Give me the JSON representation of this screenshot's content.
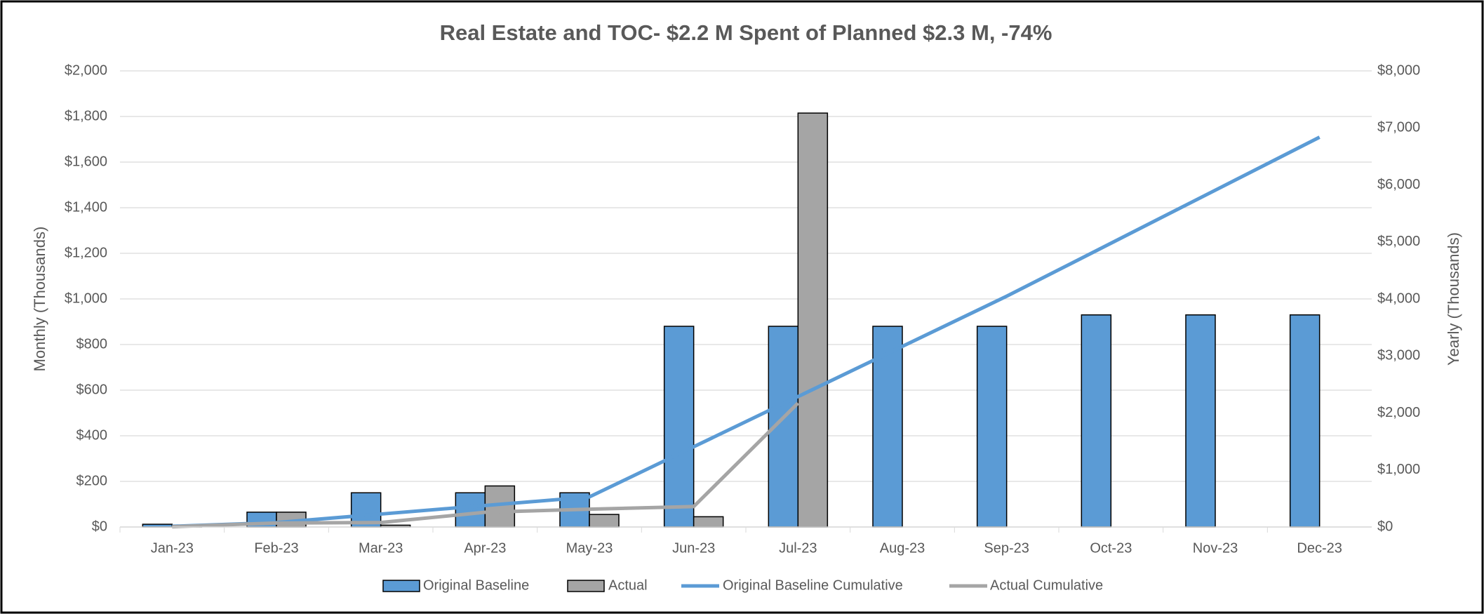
{
  "chart_data": {
    "type": "combo",
    "title": "Real Estate and TOC- $2.2 M Spent of Planned $2.3 M, -74%",
    "y_label": "Monthly (Thousands)",
    "y2_label": "Yearly (Thousands)",
    "categories": [
      "Jan-23",
      "Feb-23",
      "Mar-23",
      "Apr-23",
      "May-23",
      "Jun-23",
      "Jul-23",
      "Aug-23",
      "Sep-23",
      "Oct-23",
      "Nov-23",
      "Dec-23"
    ],
    "series": [
      {
        "name": "Original Baseline",
        "type": "bar",
        "color": "#5b9bd5",
        "values": [
          12,
          65,
          150,
          150,
          150,
          880,
          880,
          880,
          880,
          930,
          930,
          930
        ]
      },
      {
        "name": "Actual",
        "type": "bar",
        "color": "#a5a5a5",
        "values": [
          5,
          65,
          8,
          180,
          55,
          45,
          1815,
          null,
          null,
          null,
          null,
          null
        ]
      },
      {
        "name": "Original Baseline Cumulative",
        "type": "line",
        "axis": "y2",
        "color": "#5b9bd5",
        "values": [
          12,
          77,
          227,
          377,
          527,
          1407,
          2287,
          3167,
          4047,
          4977,
          5907,
          6837
        ]
      },
      {
        "name": "Actual Cumulative",
        "type": "line",
        "axis": "y2",
        "color": "#a5a5a5",
        "values": [
          5,
          70,
          78,
          258,
          313,
          358,
          2173,
          null,
          null,
          null,
          null,
          null
        ]
      }
    ],
    "ylim": [
      0,
      2000
    ],
    "yticks": [
      {
        "value": 0,
        "label": "$0"
      },
      {
        "value": 200,
        "label": "$200"
      },
      {
        "value": 400,
        "label": "$400"
      },
      {
        "value": 600,
        "label": "$600"
      },
      {
        "value": 800,
        "label": "$800"
      },
      {
        "value": 1000,
        "label": "$1,000"
      },
      {
        "value": 1200,
        "label": "$1,200"
      },
      {
        "value": 1400,
        "label": "$1,400"
      },
      {
        "value": 1600,
        "label": "$1,600"
      },
      {
        "value": 1800,
        "label": "$1,800"
      },
      {
        "value": 2000,
        "label": "$2,000"
      }
    ],
    "y2lim": [
      0,
      8000
    ],
    "y2ticks": [
      {
        "value": 0,
        "label": "$0"
      },
      {
        "value": 1000,
        "label": "$1,000"
      },
      {
        "value": 2000,
        "label": "$2,000"
      },
      {
        "value": 3000,
        "label": "$3,000"
      },
      {
        "value": 4000,
        "label": "$4,000"
      },
      {
        "value": 5000,
        "label": "$5,000"
      },
      {
        "value": 6000,
        "label": "$6,000"
      },
      {
        "value": 7000,
        "label": "$7,000"
      },
      {
        "value": 8000,
        "label": "$8,000"
      }
    ],
    "grid": true,
    "legend": "bottom"
  }
}
